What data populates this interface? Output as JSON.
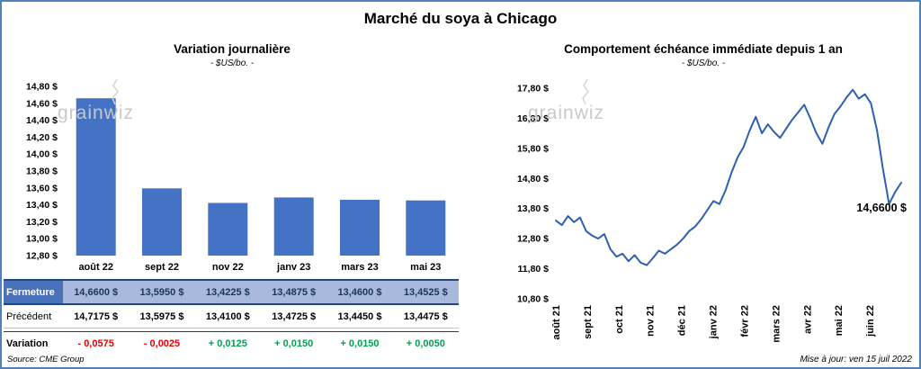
{
  "page": {
    "title": "Marché du soya à Chicago",
    "source": "Source: CME Group",
    "updated": "Mise à jour: ven 15 juil 2022",
    "watermark": "grainwiz"
  },
  "colors": {
    "bar": "#4472C4",
    "line": "#2E60B0",
    "negative": "#E60000",
    "positive": "#00A050",
    "close_row_bg": "#A9B9DD",
    "close_label_bg": "#4A72B8",
    "frame_border": "#4F81BD"
  },
  "chart_data": [
    {
      "type": "bar",
      "title": "Variation journalière",
      "subtitle": "- $US/bo. -",
      "categories": [
        "août 22",
        "sept 22",
        "nov 22",
        "janv 23",
        "mars 23",
        "mai 23"
      ],
      "values": [
        14.66,
        13.595,
        13.4225,
        13.4875,
        13.46,
        13.4525
      ],
      "ylim": [
        12.8,
        14.8
      ],
      "ytick_step": 0.2,
      "ytick_suffix": " $",
      "bar_color": "#4472C4",
      "grid": false,
      "legend": "none"
    },
    {
      "type": "line",
      "title": "Comportement échéance immédiate depuis 1 an",
      "subtitle": "- $US/bo. -",
      "x_ticks": [
        "août 21",
        "sept 21",
        "oct 21",
        "nov 21",
        "déc 21",
        "janv 22",
        "févr 22",
        "mars 22",
        "avr 22",
        "mai 22",
        "juin 22"
      ],
      "values": [
        13.4,
        13.25,
        13.55,
        13.35,
        13.5,
        13.05,
        12.9,
        12.8,
        12.95,
        12.45,
        12.2,
        12.3,
        12.05,
        12.25,
        12.0,
        11.92,
        12.15,
        12.4,
        12.3,
        12.45,
        12.6,
        12.8,
        13.05,
        13.2,
        13.45,
        13.75,
        14.05,
        13.95,
        14.4,
        15.0,
        15.5,
        15.85,
        16.4,
        16.85,
        16.3,
        16.6,
        16.35,
        16.15,
        16.45,
        16.75,
        17.0,
        17.25,
        16.8,
        16.3,
        15.95,
        16.5,
        16.95,
        17.2,
        17.5,
        17.75,
        17.45,
        17.6,
        17.3,
        16.4,
        15.1,
        13.95,
        14.35,
        14.66
      ],
      "ylim": [
        10.8,
        17.8
      ],
      "ytick_step": 1.0,
      "ytick_suffix": " $",
      "line_color": "#2E60B0",
      "grid": false,
      "legend": "none",
      "annotation": {
        "text": "14,6600 $",
        "value": 14.66
      }
    }
  ],
  "table": {
    "rows": [
      {
        "label": "Fermeture",
        "values": [
          "14,6600 $",
          "13,5950 $",
          "13,4225 $",
          "13,4875 $",
          "13,4600 $",
          "13,4525 $"
        ]
      },
      {
        "label": "Précédent",
        "values": [
          "14,7175 $",
          "13,5975 $",
          "13,4100 $",
          "13,4725 $",
          "13,4450 $",
          "13,4475 $"
        ]
      },
      {
        "label": "Variation",
        "values": [
          "- 0,0575",
          "- 0,0025",
          "+ 0,0125",
          "+ 0,0150",
          "+ 0,0150",
          "+ 0,0050"
        ],
        "signs": [
          "neg",
          "neg",
          "pos",
          "pos",
          "pos",
          "pos"
        ]
      }
    ]
  }
}
